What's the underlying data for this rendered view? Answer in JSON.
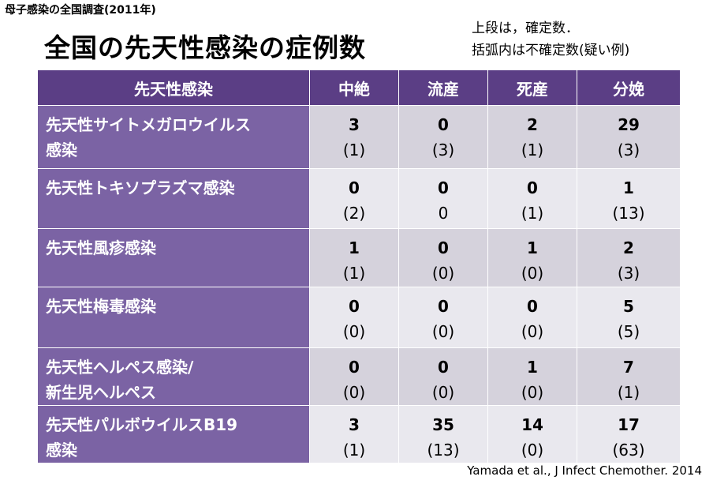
{
  "header": {
    "survey": "母子感染の全国調査(2011年)",
    "title": "全国の先天性感染の症例数",
    "note": [
      "上段は，確定数．",
      "括弧内は不確定数(疑い例)"
    ]
  },
  "table": {
    "columns": [
      "先天性感染",
      "中絶",
      "流産",
      "死産",
      "分娩"
    ],
    "rows": [
      {
        "name": [
          "先天性サイトメガロウイルス",
          "感染"
        ],
        "cells": [
          [
            "3",
            "(1)"
          ],
          [
            "0",
            "(3)"
          ],
          [
            "2",
            "(1)"
          ],
          [
            "29",
            "(3)"
          ]
        ]
      },
      {
        "name": [
          "先天性トキソプラズマ感染"
        ],
        "cells": [
          [
            "0",
            "(2)"
          ],
          [
            "0",
            "0"
          ],
          [
            "0",
            "(1)"
          ],
          [
            "1",
            "(13)"
          ]
        ]
      },
      {
        "name": [
          "先天性風疹感染"
        ],
        "cells": [
          [
            "1",
            "(1)"
          ],
          [
            "0",
            "(0)"
          ],
          [
            "1",
            "(0)"
          ],
          [
            "2",
            "(3)"
          ]
        ]
      },
      {
        "name": [
          "先天性梅毒感染"
        ],
        "cells": [
          [
            "0",
            "(0)"
          ],
          [
            "0",
            "(0)"
          ],
          [
            "0",
            "(0)"
          ],
          [
            "5",
            "(5)"
          ]
        ]
      },
      {
        "name": [
          "先天性ヘルペス感染/",
          "新生児ヘルペス"
        ],
        "cells": [
          [
            "0",
            "(0)"
          ],
          [
            "0",
            "(0)"
          ],
          [
            "1",
            "(0)"
          ],
          [
            "7",
            "(1)"
          ]
        ]
      },
      {
        "name": [
          "先天性パルボウイルスB19",
          "感染"
        ],
        "cells": [
          [
            "3",
            "(1)"
          ],
          [
            "35",
            "(13)"
          ],
          [
            "14",
            "(0)"
          ],
          [
            "17",
            "(63)"
          ]
        ]
      }
    ]
  },
  "footer": {
    "citation": "Yamada et al., J Infect Chemother. 2014"
  }
}
